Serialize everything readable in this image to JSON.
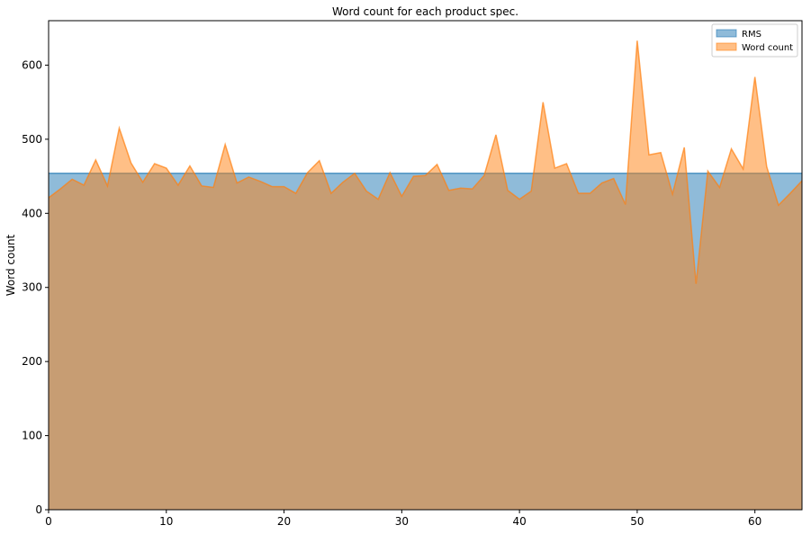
{
  "chart_data": {
    "type": "area",
    "title": "Word count for each product spec.",
    "xlabel": "",
    "ylabel": "Word count",
    "xlim": [
      0,
      64
    ],
    "ylim": [
      0,
      660
    ],
    "xticks": [
      0,
      10,
      20,
      30,
      40,
      50,
      60
    ],
    "yticks": [
      0,
      100,
      200,
      300,
      400,
      500,
      600
    ],
    "grid": false,
    "legend_position": "top-right",
    "series": [
      {
        "name": "RMS",
        "color": "#1f77b4",
        "x": [
          0,
          64
        ],
        "values": [
          454,
          454
        ]
      },
      {
        "name": "Word count",
        "color": "#ff7f0e",
        "x": [
          0,
          1,
          2,
          3,
          4,
          5,
          6,
          7,
          8,
          9,
          10,
          11,
          12,
          13,
          14,
          15,
          16,
          17,
          18,
          19,
          20,
          21,
          22,
          23,
          24,
          25,
          26,
          27,
          28,
          29,
          30,
          31,
          32,
          33,
          34,
          35,
          36,
          37,
          38,
          39,
          40,
          41,
          42,
          43,
          44,
          45,
          46,
          47,
          48,
          49,
          50,
          51,
          52,
          53,
          54,
          55,
          56,
          57,
          58,
          59,
          60,
          61,
          62,
          63,
          64
        ],
        "values": [
          421,
          433,
          446,
          438,
          472,
          437,
          515,
          468,
          442,
          467,
          461,
          438,
          464,
          437,
          435,
          493,
          441,
          449,
          443,
          436,
          436,
          427,
          455,
          471,
          427,
          442,
          454,
          430,
          419,
          455,
          423,
          450,
          451,
          466,
          431,
          434,
          433,
          451,
          506,
          431,
          419,
          430,
          550,
          461,
          467,
          427,
          427,
          441,
          447,
          412,
          633,
          479,
          482,
          426,
          489,
          305,
          457,
          435,
          487,
          460,
          584,
          463,
          411,
          427,
          444
        ]
      }
    ]
  }
}
